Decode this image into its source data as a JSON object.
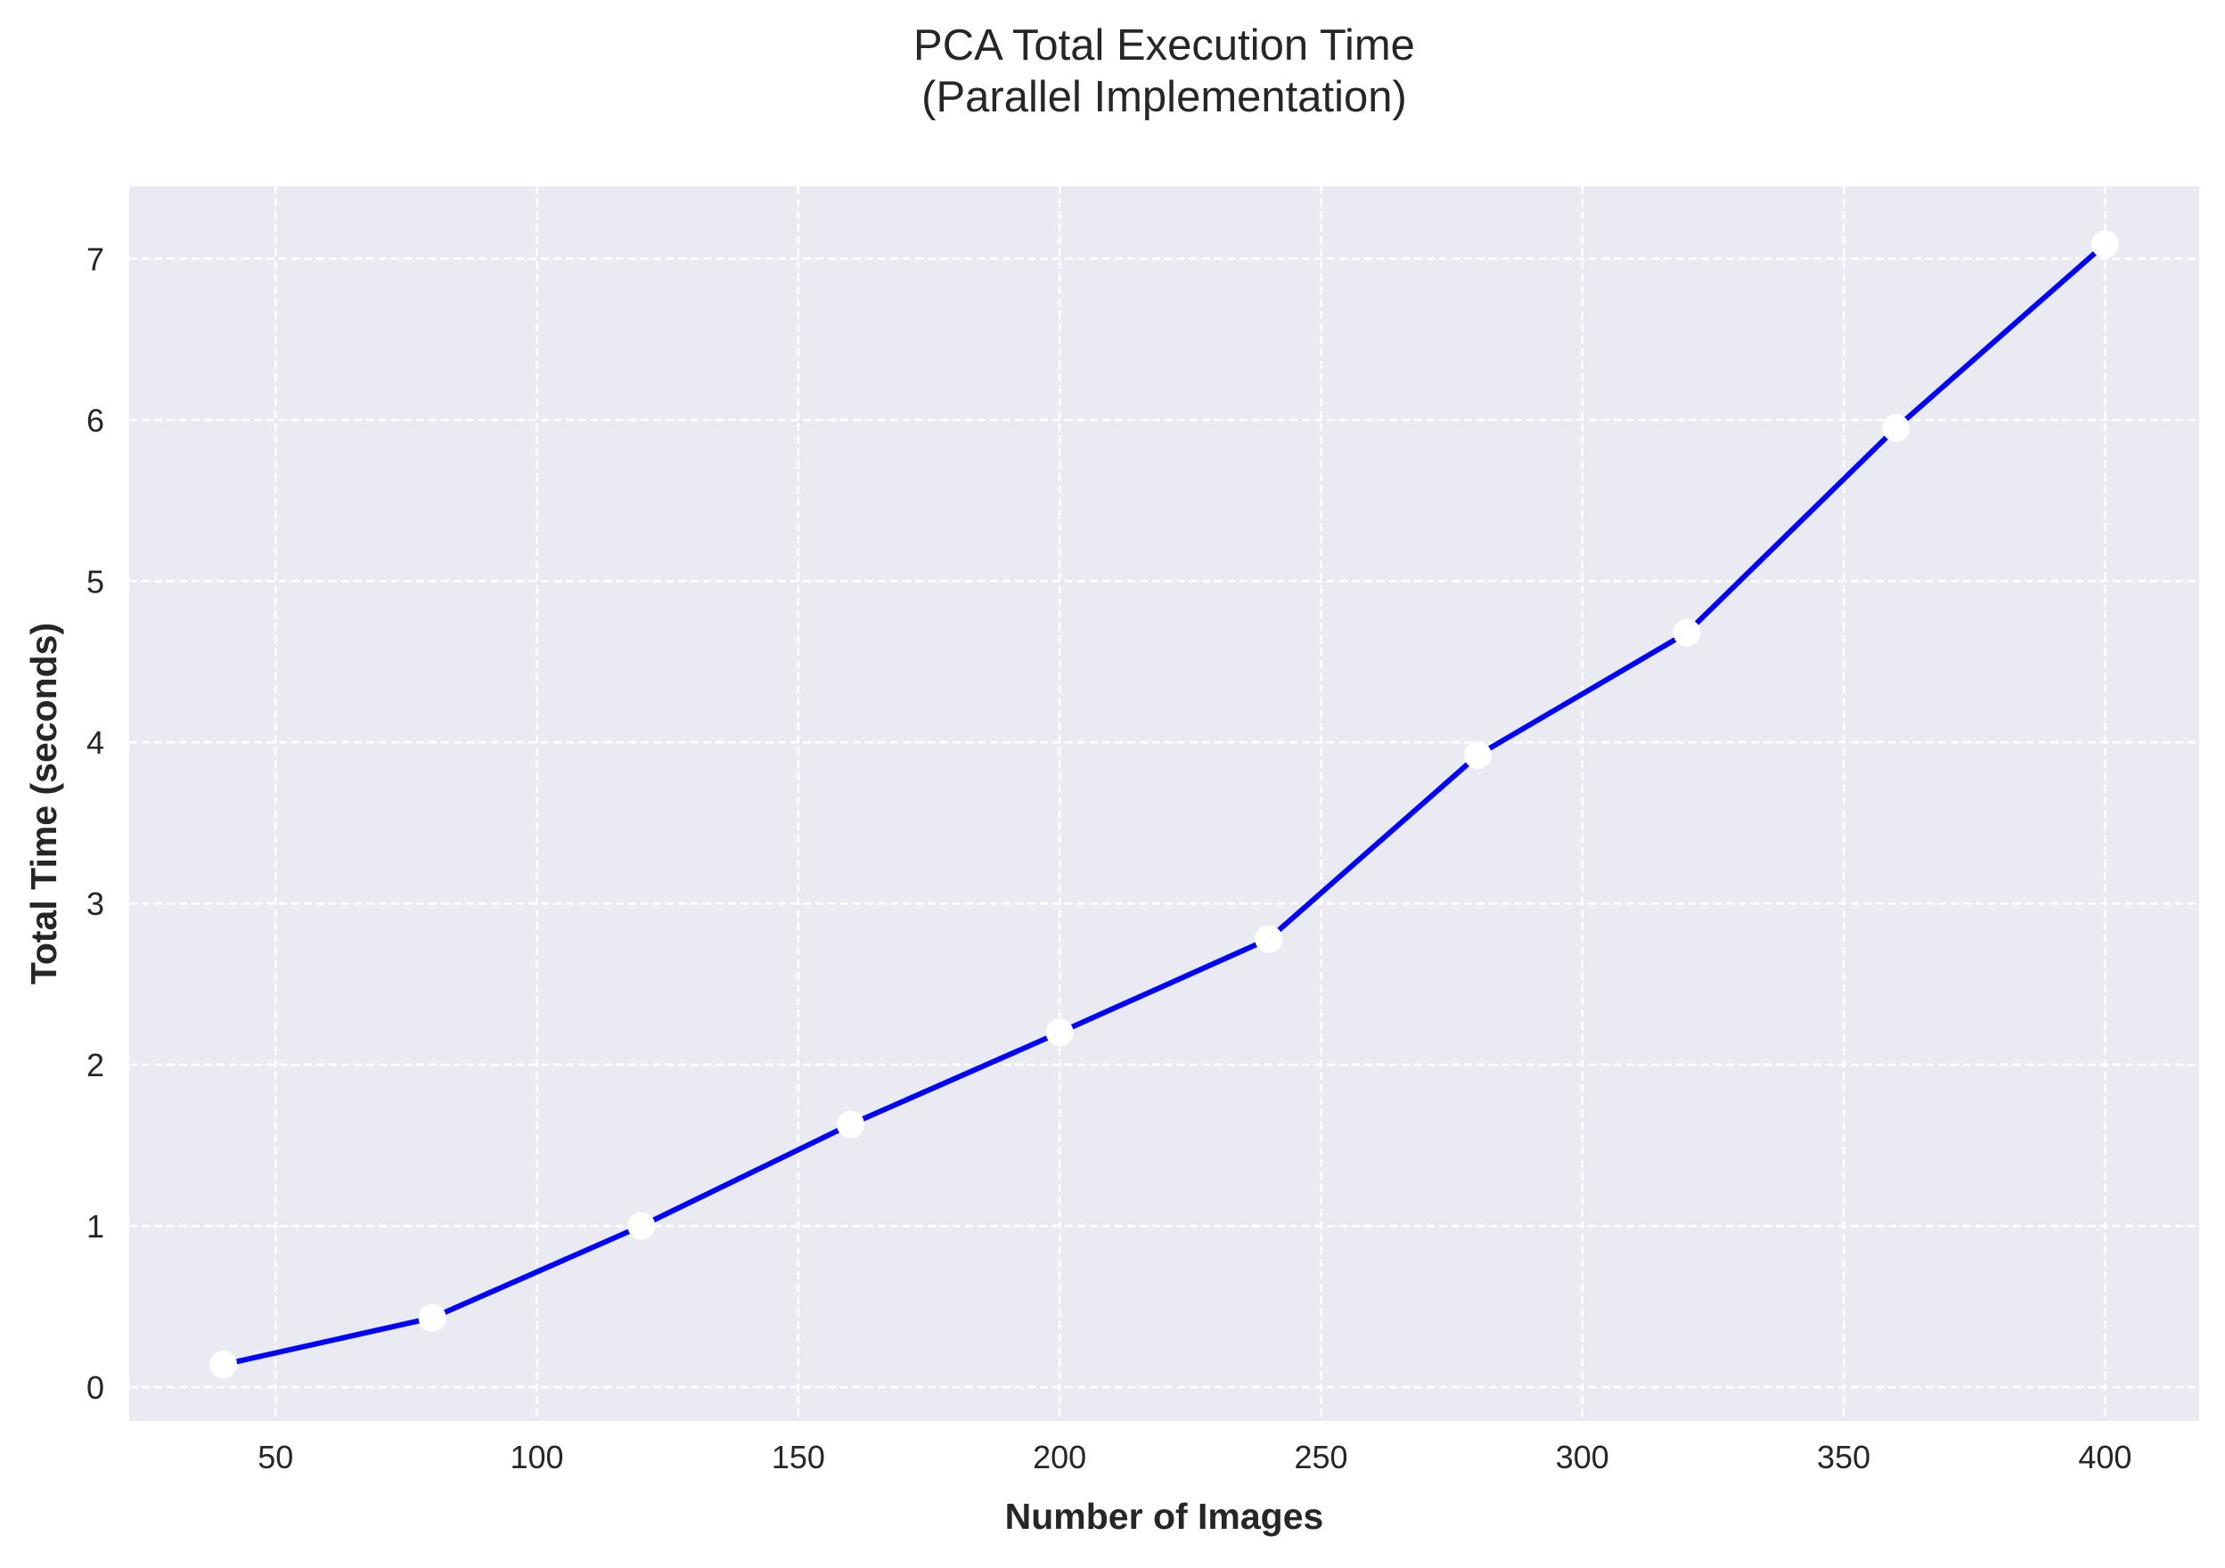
{
  "chart_data": {
    "type": "line",
    "title_lines": [
      "PCA Total Execution Time",
      "(Parallel Implementation)"
    ],
    "xlabel": "Number of Images",
    "ylabel": "Total Time (seconds)",
    "x": [
      40,
      80,
      120,
      160,
      200,
      240,
      280,
      320,
      360,
      400
    ],
    "series": [
      {
        "values": [
          0.14,
          0.43,
          1.0,
          1.63,
          2.2,
          2.78,
          3.92,
          4.68,
          5.95,
          7.09
        ],
        "line_color": "#0000ff",
        "marker_color": "#ffffff"
      }
    ],
    "xlim": [
      22,
      418
    ],
    "ylim": [
      -0.21,
      7.45
    ],
    "xticks": [
      50,
      100,
      150,
      200,
      250,
      300,
      350,
      400
    ],
    "yticks": [
      0,
      1,
      2,
      3,
      4,
      5,
      6,
      7
    ],
    "grid": true,
    "grid_style": "dashed",
    "plot_background": "#eaeaf2",
    "grid_color": "#ffffff",
    "legend": "none"
  }
}
